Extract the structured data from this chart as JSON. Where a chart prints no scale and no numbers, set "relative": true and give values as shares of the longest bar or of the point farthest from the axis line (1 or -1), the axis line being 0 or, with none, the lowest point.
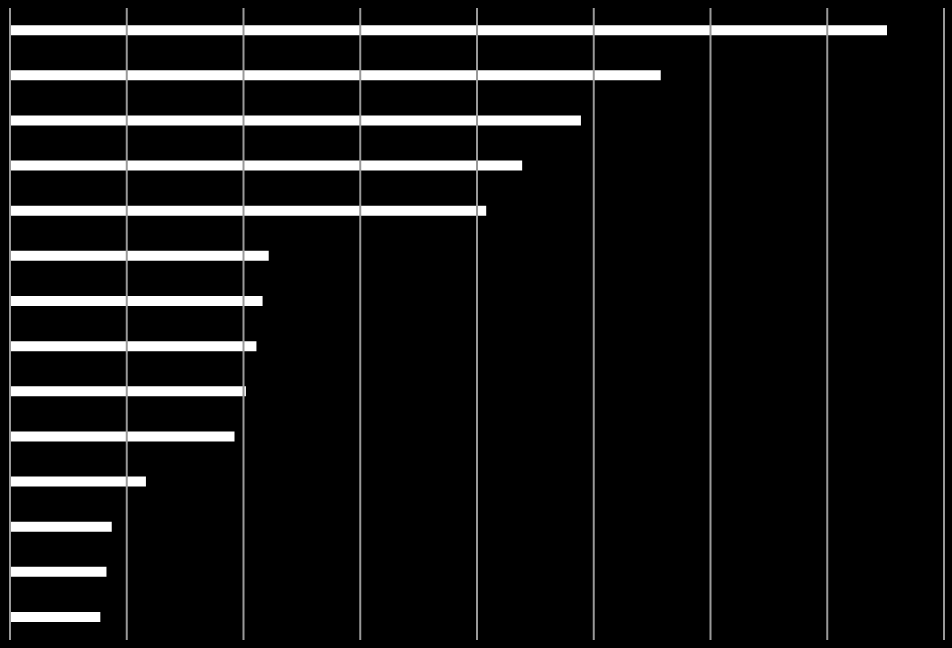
{
  "chart_data": {
    "type": "bar",
    "orientation": "horizontal",
    "relative": true,
    "categories": [
      null,
      null,
      null,
      null,
      null,
      null,
      null,
      null,
      null,
      null,
      null,
      null,
      null,
      null
    ],
    "values": [
      1,
      0.742,
      0.651,
      0.584,
      0.543,
      0.295,
      0.288,
      0.281,
      0.269,
      0.256,
      0.155,
      0.116,
      0.11,
      0.103
    ],
    "color": "#ffffff",
    "grid": "x"
  }
}
